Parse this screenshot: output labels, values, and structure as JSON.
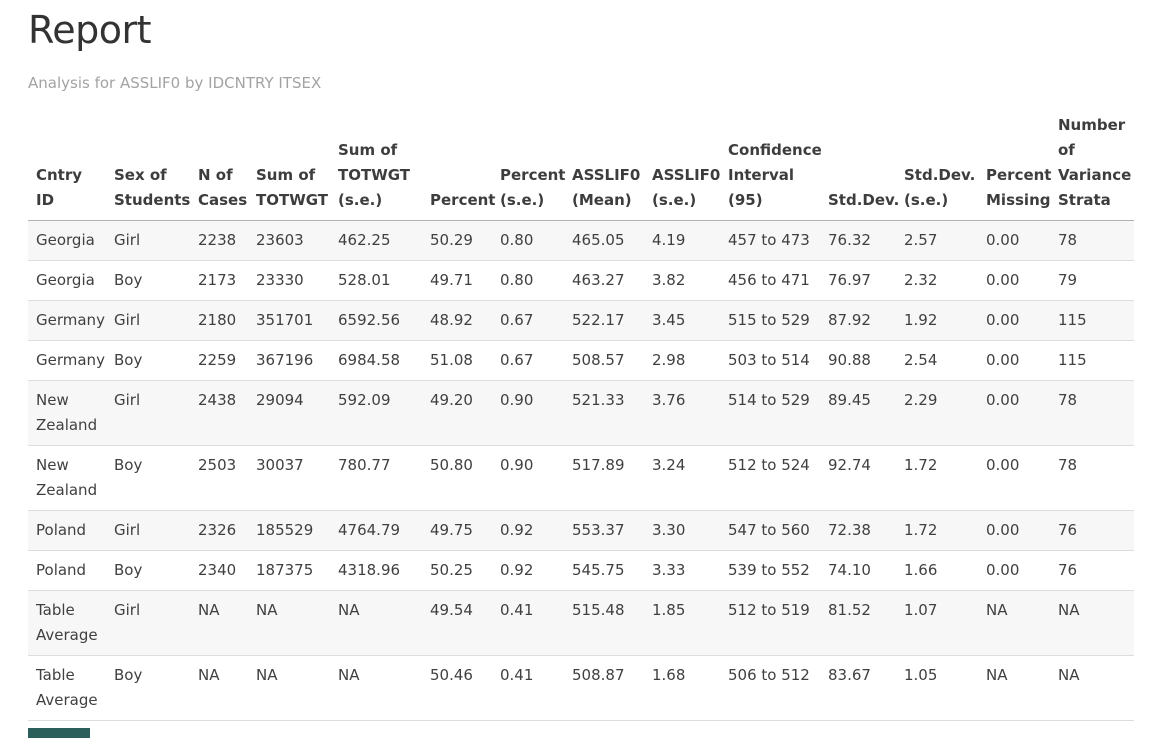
{
  "page": {
    "title": "Report",
    "subtitle": "Analysis for ASSLIF0 by IDCNTRY ITSEX"
  },
  "table": {
    "columns": [
      "Cntry ID",
      "Sex of Students",
      "N of Cases",
      "Sum of TOTWGT",
      "Sum of TOTWGT (s.e.)",
      "Percent",
      "Percent (s.e.)",
      "ASSLIF0 (Mean)",
      "ASSLIF0 (s.e.)",
      "Confidence Interval (95)",
      "Std.Dev.",
      "Std.Dev. (s.e.)",
      "Percent Missing",
      "Number of Variance Strata"
    ],
    "rows": [
      [
        "Georgia",
        "Girl",
        "2238",
        "23603",
        "462.25",
        "50.29",
        "0.80",
        "465.05",
        "4.19",
        "457 to 473",
        "76.32",
        "2.57",
        "0.00",
        "78"
      ],
      [
        "Georgia",
        "Boy",
        "2173",
        "23330",
        "528.01",
        "49.71",
        "0.80",
        "463.27",
        "3.82",
        "456 to 471",
        "76.97",
        "2.32",
        "0.00",
        "79"
      ],
      [
        "Germany",
        "Girl",
        "2180",
        "351701",
        "6592.56",
        "48.92",
        "0.67",
        "522.17",
        "3.45",
        "515 to 529",
        "87.92",
        "1.92",
        "0.00",
        "115"
      ],
      [
        "Germany",
        "Boy",
        "2259",
        "367196",
        "6984.58",
        "51.08",
        "0.67",
        "508.57",
        "2.98",
        "503 to 514",
        "90.88",
        "2.54",
        "0.00",
        "115"
      ],
      [
        "New Zealand",
        "Girl",
        "2438",
        "29094",
        "592.09",
        "49.20",
        "0.90",
        "521.33",
        "3.76",
        "514 to 529",
        "89.45",
        "2.29",
        "0.00",
        "78"
      ],
      [
        "New Zealand",
        "Boy",
        "2503",
        "30037",
        "780.77",
        "50.80",
        "0.90",
        "517.89",
        "3.24",
        "512 to 524",
        "92.74",
        "1.72",
        "0.00",
        "78"
      ],
      [
        "Poland",
        "Girl",
        "2326",
        "185529",
        "4764.79",
        "49.75",
        "0.92",
        "553.37",
        "3.30",
        "547 to 560",
        "72.38",
        "1.72",
        "0.00",
        "76"
      ],
      [
        "Poland",
        "Boy",
        "2340",
        "187375",
        "4318.96",
        "50.25",
        "0.92",
        "545.75",
        "3.33",
        "539 to 552",
        "74.10",
        "1.66",
        "0.00",
        "76"
      ],
      [
        "Table Average",
        "Girl",
        "NA",
        "NA",
        "NA",
        "49.54",
        "0.41",
        "515.48",
        "1.85",
        "512 to 519",
        "81.52",
        "1.07",
        "NA",
        "NA"
      ],
      [
        "Table Average",
        "Boy",
        "NA",
        "NA",
        "NA",
        "50.46",
        "0.41",
        "508.87",
        "1.68",
        "506 to 512",
        "83.67",
        "1.05",
        "NA",
        "NA"
      ]
    ]
  },
  "colors": {
    "accent_bar": "#2b5f5c",
    "stripe": "#f7f7f7",
    "header_border": "#b2b2b2",
    "row_border": "#dddddd"
  }
}
